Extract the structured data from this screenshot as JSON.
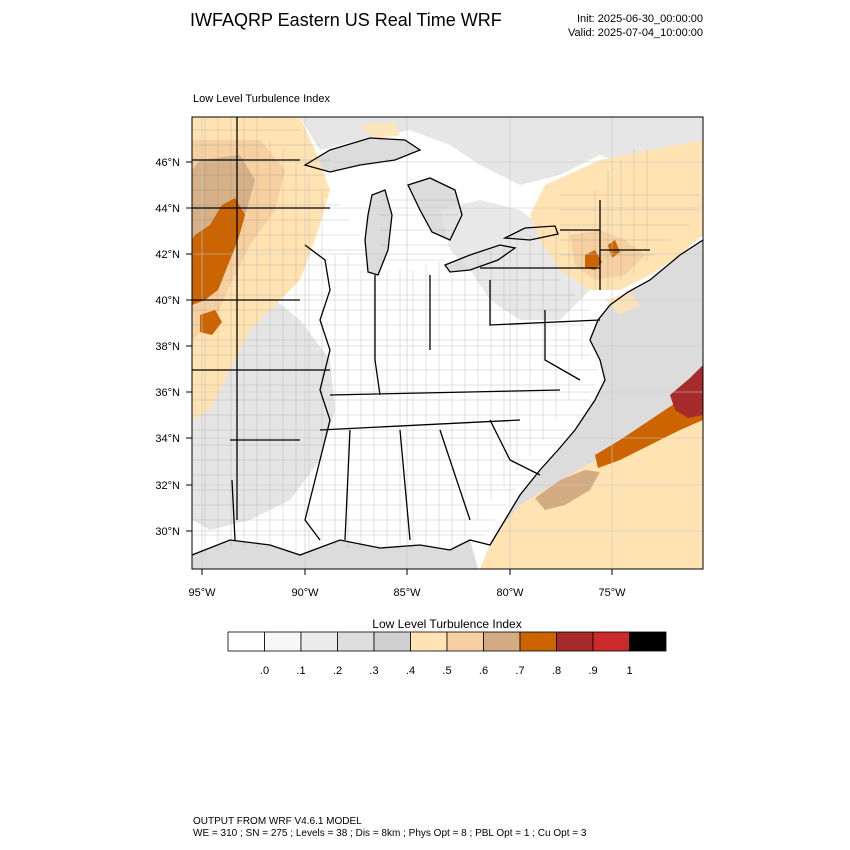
{
  "header": {
    "title": "IWFAQRP Eastern US Real Time WRF",
    "init": "Init: 2025-06-30_00:00:00",
    "valid": "Valid: 2025-07-04_10:00:00"
  },
  "map": {
    "subtitle": "Low Level Turbulence Index",
    "lat_labels": [
      "46°N",
      "44°N",
      "42°N",
      "40°N",
      "38°N",
      "36°N",
      "34°N",
      "32°N",
      "30°N"
    ],
    "lon_labels": [
      "95°W",
      "90°W",
      "85°W",
      "80°W",
      "75°W"
    ],
    "land_color": "#ffffff",
    "water_color": "#dcdcdc"
  },
  "colorbar": {
    "title": "Low Level Turbulence Index",
    "colors": [
      "#ffffff",
      "#f7f7f7",
      "#ececec",
      "#dedede",
      "#d0d0d0",
      "#ffe3b3",
      "#f6d0a0",
      "#d3ac84",
      "#cc6400",
      "#a82b2b",
      "#cc2a2a",
      "#000000"
    ],
    "labels": [
      ".0",
      ".1",
      ".2",
      ".3",
      ".4",
      ".5",
      ".6",
      ".7",
      ".8",
      ".9",
      "1"
    ]
  },
  "footer": {
    "line1": "OUTPUT FROM WRF V4.6.1 MODEL",
    "line2": "WE = 310 ; SN = 275 ; Levels = 38 ; Dis = 8km ; Phys Opt = 8 ; PBL Opt = 1 ; Cu Opt = 3"
  }
}
